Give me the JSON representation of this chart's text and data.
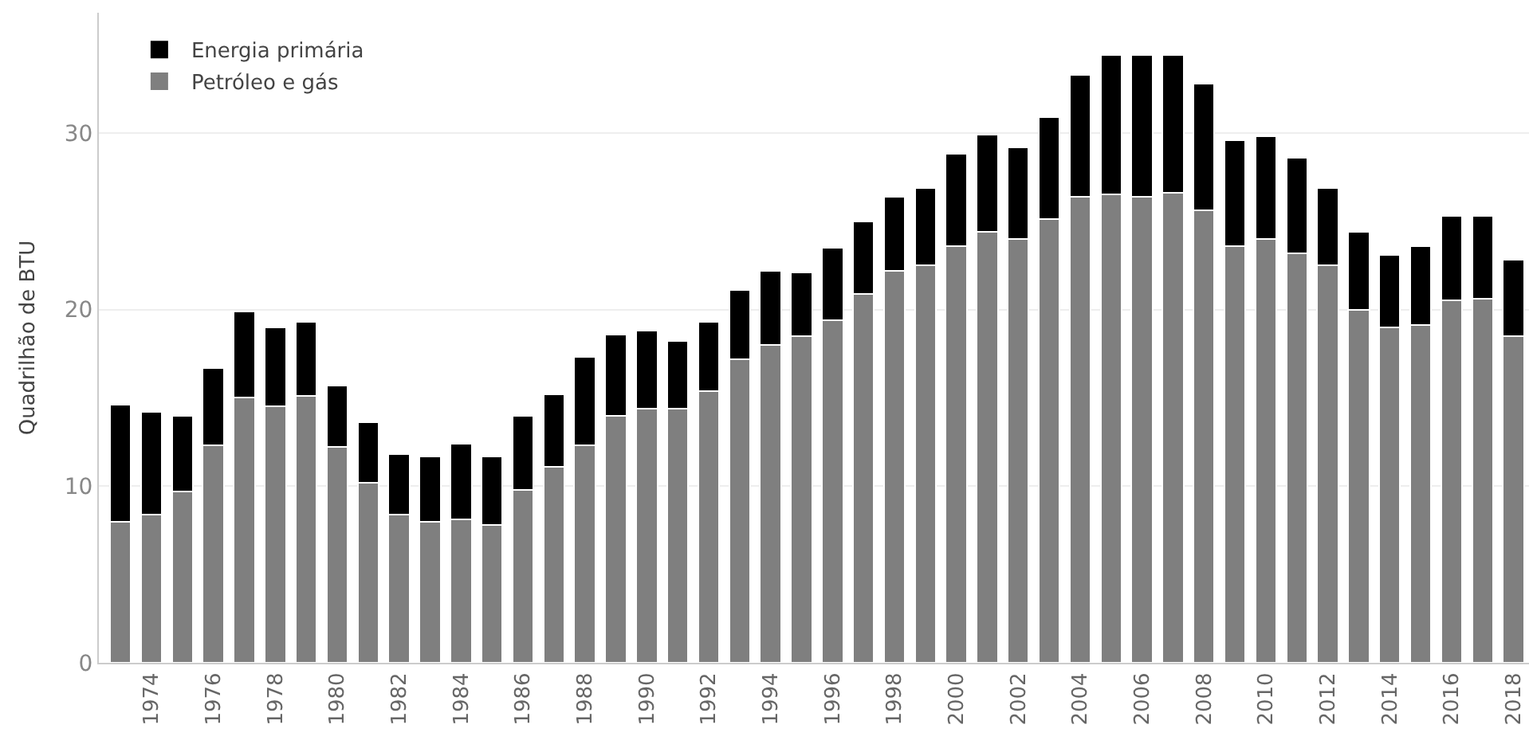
{
  "chart_data": {
    "type": "bar",
    "stacked": true,
    "ylabel": "Quadrilhão de BTU",
    "categories": [
      null,
      "1974",
      null,
      "1976",
      null,
      "1978",
      null,
      "1980",
      null,
      "1982",
      null,
      "1984",
      null,
      "1986",
      null,
      "1988",
      null,
      "1990",
      null,
      "1992",
      null,
      "1994",
      null,
      "1996",
      null,
      "1998",
      null,
      "2000",
      null,
      "2002",
      null,
      "2004",
      null,
      "2006",
      null,
      "2008",
      null,
      "2010",
      null,
      "2012",
      null,
      "2014",
      null,
      "2016",
      null,
      "2018"
    ],
    "series": [
      {
        "name": "Petróleo e gás",
        "color": "#7f7f7f",
        "values": [
          8.0,
          8.4,
          9.7,
          12.3,
          15.0,
          14.5,
          15.1,
          12.2,
          10.2,
          8.4,
          8.0,
          8.1,
          7.8,
          9.8,
          11.1,
          12.3,
          14.0,
          14.4,
          14.4,
          15.4,
          17.2,
          18.0,
          18.5,
          19.4,
          20.9,
          22.2,
          22.5,
          23.6,
          24.4,
          24.0,
          25.1,
          26.4,
          26.5,
          26.4,
          26.6,
          25.6,
          23.6,
          24.0,
          23.2,
          22.5,
          20.0,
          19.0,
          19.1,
          20.5,
          20.6,
          18.5
        ]
      },
      {
        "name": "Energia primária",
        "color": "#000000",
        "values": [
          6.6,
          5.8,
          4.3,
          4.4,
          4.9,
          4.5,
          4.2,
          3.5,
          3.4,
          3.4,
          3.7,
          4.3,
          3.9,
          4.2,
          4.1,
          5.0,
          4.6,
          4.4,
          3.8,
          3.9,
          3.9,
          4.2,
          3.6,
          4.1,
          4.1,
          4.2,
          4.4,
          5.2,
          5.5,
          5.2,
          5.8,
          6.9,
          7.9,
          8.0,
          7.8,
          7.2,
          6.0,
          5.8,
          5.4,
          4.4,
          4.4,
          4.1,
          4.5,
          4.8,
          4.7,
          4.3
        ]
      }
    ],
    "ylim": [
      0,
      36.8
    ],
    "yticks": [
      0,
      10,
      20,
      30
    ],
    "grid": "y",
    "legend": "top left"
  }
}
